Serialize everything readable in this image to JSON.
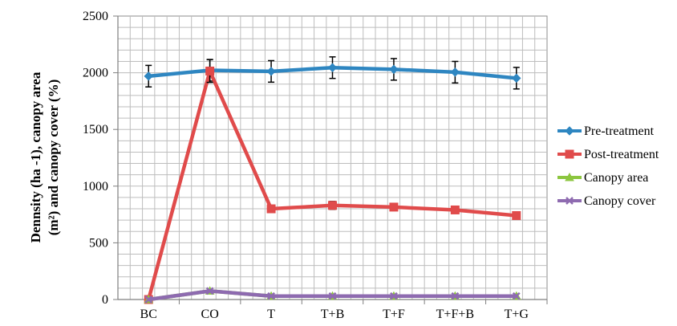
{
  "chart_data": {
    "type": "line",
    "categories": [
      "BC",
      "CO",
      "T",
      "T+B",
      "T+F",
      "T+F+B",
      "T+G"
    ],
    "ylabel_line1": "Dennsity (ha -1), canopy area",
    "ylabel_line2": "(m²) and canopy cover (%)",
    "ylim": [
      0,
      2500
    ],
    "yticks": [
      0,
      500,
      1000,
      1500,
      2000,
      2500
    ],
    "grid": true,
    "legend_position": "right",
    "series": [
      {
        "name": "Pre-treatment",
        "color": "#2E86C1",
        "marker": "diamond",
        "values": [
          1970,
          2022,
          2012,
          2045,
          2030,
          2005,
          1952
        ],
        "error": [
          95,
          95,
          95,
          95,
          95,
          95,
          95
        ]
      },
      {
        "name": "Post-treatment",
        "color": "#E04B4B",
        "marker": "square",
        "values": [
          0,
          2015,
          800,
          830,
          815,
          790,
          740
        ],
        "error": [
          0,
          100,
          30,
          35,
          30,
          30,
          25
        ]
      },
      {
        "name": "Canopy area",
        "color": "#8CC63F",
        "marker": "triangle",
        "values": [
          0,
          75,
          30,
          30,
          30,
          30,
          30
        ]
      },
      {
        "name": "Canopy cover",
        "color": "#8E6BB0",
        "marker": "x",
        "values": [
          0,
          75,
          30,
          30,
          30,
          30,
          30
        ]
      }
    ]
  }
}
